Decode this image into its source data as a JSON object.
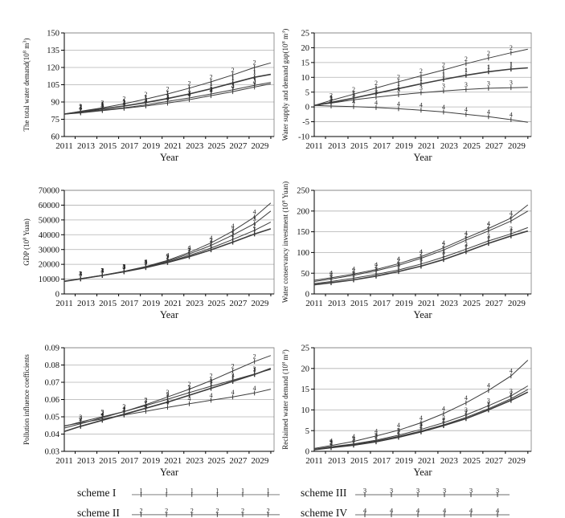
{
  "figure": {
    "xlabel": "Year",
    "x_tick_labels": [
      "2011",
      "2013",
      "2015",
      "2017",
      "2019",
      "2021",
      "2023",
      "2025",
      "2027",
      "2029"
    ],
    "line_color": "#3c3c3c",
    "grid_color": "#b0b0b0",
    "legend": [
      {
        "label": "scheme I",
        "marker": "1"
      },
      {
        "label": "scheme II",
        "marker": "2"
      },
      {
        "label": "scheme III",
        "marker": "3"
      },
      {
        "label": "scheme IV",
        "marker": "4"
      }
    ]
  },
  "chart_data": [
    {
      "id": "total-water-demand",
      "type": "line",
      "col": "left",
      "ylabel_text": "The total water demand(10^8 m^3)",
      "ylabel_parts": [
        {
          "t": "The total water demand(10"
        },
        {
          "t": "8",
          "sup": true
        },
        {
          "t": " m"
        },
        {
          "t": "3",
          "sup": true
        },
        {
          "t": ")"
        }
      ],
      "xlabel": "Year",
      "xlim": [
        2011,
        2030.3
      ],
      "ylim": [
        60,
        150
      ],
      "ytick_labels": [
        "60",
        "75",
        "90",
        "105",
        "120",
        "135",
        "150"
      ],
      "yticks": [
        60,
        75,
        90,
        105,
        120,
        135,
        150
      ],
      "x": [
        2011,
        2012.5,
        2014.5,
        2016.5,
        2018.5,
        2020.5,
        2022.5,
        2024.5,
        2026.5,
        2028.5,
        2030
      ],
      "series": [
        {
          "name": "scheme I",
          "marker": "1",
          "values": [
            79.5,
            81.5,
            84,
            86.5,
            89.5,
            93,
            97,
            101.5,
            106.5,
            111.5,
            114
          ]
        },
        {
          "name": "scheme II",
          "marker": "2",
          "values": [
            79.5,
            82,
            85,
            88.5,
            92.5,
            97,
            102,
            107.5,
            113.5,
            120,
            124
          ]
        },
        {
          "name": "scheme III",
          "marker": "3",
          "values": [
            79.5,
            81,
            83,
            85,
            87.5,
            90.5,
            93.5,
            97,
            100.5,
            104.5,
            107
          ]
        },
        {
          "name": "scheme IV",
          "marker": "4",
          "values": [
            79.5,
            80.5,
            82.5,
            84.5,
            86.5,
            89,
            92,
            95.5,
            99,
            103,
            105.8
          ]
        }
      ]
    },
    {
      "id": "water-supply-demand-gap",
      "type": "line",
      "col": "right",
      "ylabel_text": "Water supply and demand gap(10^8 m^3)",
      "ylabel_parts": [
        {
          "t": "Water supply and demand gap(10"
        },
        {
          "t": "8",
          "sup": true
        },
        {
          "t": " m"
        },
        {
          "t": "3",
          "sup": true
        },
        {
          "t": ")"
        }
      ],
      "xlabel": "Year",
      "xlim": [
        2011,
        2030.3
      ],
      "ylim": [
        -10,
        25
      ],
      "ytick_labels": [
        "-10",
        "-5",
        "0",
        "5",
        "10",
        "15",
        "20",
        "25"
      ],
      "yticks": [
        -10,
        -5,
        0,
        5,
        10,
        15,
        20,
        25
      ],
      "x": [
        2011,
        2012.5,
        2014.5,
        2016.5,
        2018.5,
        2020.5,
        2022.5,
        2024.5,
        2026.5,
        2028.5,
        2030
      ],
      "series": [
        {
          "name": "scheme I",
          "marker": "1",
          "values": [
            0.5,
            1.5,
            3,
            4.6,
            6.2,
            7.8,
            9.3,
            10.7,
            11.9,
            12.8,
            13.2
          ]
        },
        {
          "name": "scheme II",
          "marker": "2",
          "values": [
            0.5,
            2.2,
            4.3,
            6.4,
            8.5,
            10.5,
            12.5,
            14.6,
            16.5,
            18.3,
            19.5
          ]
        },
        {
          "name": "scheme III",
          "marker": "3",
          "values": [
            0.5,
            1.3,
            2.4,
            3.3,
            4.1,
            4.8,
            5.4,
            5.9,
            6.3,
            6.5,
            6.6
          ]
        },
        {
          "name": "scheme IV",
          "marker": "4",
          "values": [
            0.5,
            0.3,
            0.1,
            -0.2,
            -0.6,
            -1.1,
            -1.7,
            -2.5,
            -3.3,
            -4.3,
            -5.2
          ]
        }
      ]
    },
    {
      "id": "gdp",
      "type": "line",
      "col": "left",
      "ylabel_text": "GDP (10^8 Yuan)",
      "ylabel_parts": [
        {
          "t": "GDP (10"
        },
        {
          "t": "8",
          "sup": true
        },
        {
          "t": " Yuan)"
        }
      ],
      "xlabel": "Year",
      "xlim": [
        2011,
        2030.3
      ],
      "ylim": [
        0,
        70000
      ],
      "ytick_labels": [
        "0",
        "10000",
        "20000",
        "30000",
        "40000",
        "50000",
        "60000",
        "70000"
      ],
      "yticks": [
        0,
        10000,
        20000,
        30000,
        40000,
        50000,
        60000,
        70000
      ],
      "x": [
        2011,
        2012.5,
        2014.5,
        2016.5,
        2018.5,
        2020.5,
        2022.5,
        2024.5,
        2026.5,
        2028.5,
        2030
      ],
      "series": [
        {
          "name": "scheme I",
          "marker": "1",
          "values": [
            8500,
            10200,
            12500,
            15000,
            17800,
            21200,
            25200,
            29800,
            35000,
            40500,
            44000
          ]
        },
        {
          "name": "scheme II",
          "marker": "2",
          "values": [
            8500,
            10200,
            12500,
            15000,
            18000,
            21600,
            26000,
            31000,
            36800,
            43000,
            48500
          ]
        },
        {
          "name": "scheme III",
          "marker": "3",
          "values": [
            8500,
            10200,
            12500,
            15100,
            18200,
            22200,
            27000,
            32800,
            39800,
            47500,
            56000
          ]
        },
        {
          "name": "scheme IV",
          "marker": "4",
          "values": [
            8500,
            10300,
            12600,
            15300,
            18500,
            22700,
            28000,
            34500,
            42500,
            52000,
            61500
          ]
        }
      ]
    },
    {
      "id": "water-conservancy-investment",
      "type": "line",
      "col": "right",
      "ylabel_text": "Water conservancy investment (10^8 Yuan)",
      "ylabel_parts": [
        {
          "t": "Water conservancy investment (10"
        },
        {
          "t": "8",
          "sup": true
        },
        {
          "t": " Yuan)"
        }
      ],
      "xlabel": "Year",
      "xlim": [
        2011,
        2030.3
      ],
      "ylim": [
        0,
        250
      ],
      "ytick_labels": [
        "0",
        "50",
        "100",
        "150",
        "200",
        "250"
      ],
      "yticks": [
        0,
        50,
        100,
        150,
        200,
        250
      ],
      "x": [
        2011,
        2012.5,
        2014.5,
        2016.5,
        2018.5,
        2020.5,
        2022.5,
        2024.5,
        2026.5,
        2028.5,
        2030
      ],
      "series": [
        {
          "name": "scheme I",
          "marker": "1",
          "values": [
            22,
            27,
            34,
            43,
            54,
            67,
            83,
            102,
            122,
            140,
            152
          ]
        },
        {
          "name": "scheme II",
          "marker": "2",
          "values": [
            30,
            36,
            45,
            56,
            69,
            86,
            106,
            130,
            152,
            176,
            200
          ]
        },
        {
          "name": "scheme III",
          "marker": "3",
          "values": [
            25,
            30,
            38,
            47,
            58,
            72,
            89,
            108,
            128,
            145,
            160
          ]
        },
        {
          "name": "scheme IV",
          "marker": "4",
          "values": [
            33,
            39,
            48,
            59,
            73,
            90,
            111,
            135,
            158,
            183,
            215
          ]
        }
      ]
    },
    {
      "id": "pollution-influence-coefficients",
      "type": "line",
      "col": "left",
      "ylabel_text": "Pollution influence coefficients",
      "ylabel_parts": [
        {
          "t": "Pollution influence coefficients"
        }
      ],
      "xlabel": "Year",
      "xlim": [
        2011,
        2030.3
      ],
      "ylim": [
        0.03,
        0.09
      ],
      "ytick_labels": [
        "0.03",
        "0.04",
        "0.05",
        "0.06",
        "0.07",
        "0.08",
        "0.09"
      ],
      "yticks": [
        0.03,
        0.04,
        0.05,
        0.06,
        0.07,
        0.08,
        0.09
      ],
      "x": [
        2011,
        2012.5,
        2014.5,
        2016.5,
        2018.5,
        2020.5,
        2022.5,
        2024.5,
        2026.5,
        2028.5,
        2030
      ],
      "series": [
        {
          "name": "scheme I",
          "marker": "1",
          "values": [
            0.0415,
            0.0445,
            0.048,
            0.0515,
            0.055,
            0.0585,
            0.0625,
            0.0665,
            0.0705,
            0.0745,
            0.078
          ]
        },
        {
          "name": "scheme II",
          "marker": "2",
          "values": [
            0.0435,
            0.046,
            0.0495,
            0.053,
            0.057,
            0.0615,
            0.066,
            0.071,
            0.0765,
            0.082,
            0.0855
          ]
        },
        {
          "name": "scheme III",
          "marker": "3",
          "values": [
            0.0445,
            0.047,
            0.05,
            0.053,
            0.0565,
            0.0602,
            0.064,
            0.0677,
            0.0712,
            0.0748,
            0.0775
          ]
        },
        {
          "name": "scheme IV",
          "marker": "4",
          "values": [
            0.0448,
            0.0465,
            0.0487,
            0.051,
            0.0532,
            0.0555,
            0.0576,
            0.0596,
            0.0615,
            0.0638,
            0.066
          ]
        }
      ]
    },
    {
      "id": "reclaimed-water-demand",
      "type": "line",
      "col": "right",
      "ylabel_text": "Reclaimed water demand (10^8 m^3)",
      "ylabel_parts": [
        {
          "t": "Reclaimed water demand (10"
        },
        {
          "t": "8",
          "sup": true
        },
        {
          "t": " m"
        },
        {
          "t": "3",
          "sup": true
        },
        {
          "t": ")"
        }
      ],
      "xlabel": "Year",
      "xlim": [
        2011,
        2030.3
      ],
      "ylim": [
        0,
        25
      ],
      "ytick_labels": [
        "0",
        "5",
        "10",
        "15",
        "20",
        "25"
      ],
      "yticks": [
        0,
        5,
        10,
        15,
        20,
        25
      ],
      "x": [
        2011,
        2012.5,
        2014.5,
        2016.5,
        2018.5,
        2020.5,
        2022.5,
        2024.5,
        2026.5,
        2028.5,
        2030
      ],
      "series": [
        {
          "name": "scheme I",
          "marker": "1",
          "values": [
            0.4,
            0.9,
            1.5,
            2.3,
            3.4,
            4.7,
            6.2,
            7.9,
            10,
            12.3,
            14.3
          ]
        },
        {
          "name": "scheme II",
          "marker": "2",
          "values": [
            0.45,
            1.0,
            1.65,
            2.5,
            3.6,
            4.9,
            6.4,
            8.2,
            10.3,
            12.7,
            14.9
          ]
        },
        {
          "name": "scheme III",
          "marker": "3",
          "values": [
            0.5,
            1.1,
            1.8,
            2.7,
            3.9,
            5.3,
            6.9,
            8.8,
            11,
            13.4,
            15.8
          ]
        },
        {
          "name": "scheme IV",
          "marker": "4",
          "values": [
            0.7,
            1.4,
            2.4,
            3.7,
            5.1,
            6.9,
            9.1,
            11.7,
            14.7,
            18.2,
            22
          ]
        }
      ]
    }
  ]
}
